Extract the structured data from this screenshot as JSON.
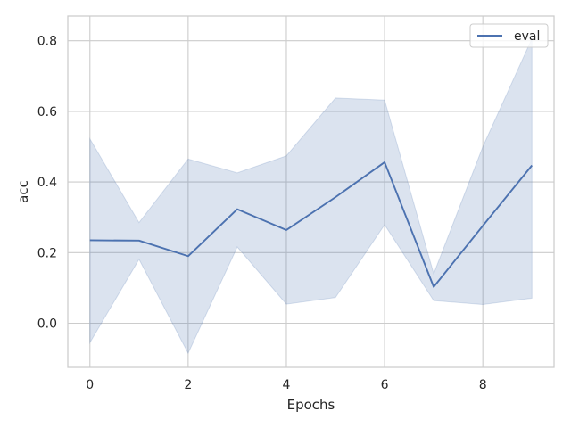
{
  "chart_data": {
    "type": "line",
    "xlabel": "Epochs",
    "ylabel": "acc",
    "xlim": [
      -0.45,
      9.45
    ],
    "ylim": [
      -0.125,
      0.87
    ],
    "xticks": [
      0,
      2,
      4,
      6,
      8
    ],
    "xtick_labels": [
      "0",
      "2",
      "4",
      "6",
      "8"
    ],
    "yticks": [
      0.0,
      0.2,
      0.4,
      0.6,
      0.8
    ],
    "ytick_labels": [
      "0.0",
      "0.2",
      "0.4",
      "0.6",
      "0.8"
    ],
    "grid": true,
    "legend_position": "top-right",
    "series": [
      {
        "name": "eval",
        "color": "#4c72b0",
        "x": [
          0,
          1,
          2,
          3,
          4,
          5,
          6,
          7,
          8,
          9
        ],
        "y": [
          0.235,
          0.234,
          0.19,
          0.323,
          0.264,
          0.357,
          0.456,
          0.103,
          0.276,
          0.447
        ],
        "ci_low": [
          -0.055,
          0.181,
          -0.085,
          0.216,
          0.054,
          0.073,
          0.279,
          0.064,
          0.053,
          0.071
        ],
        "ci_high": [
          0.522,
          0.285,
          0.465,
          0.426,
          0.474,
          0.638,
          0.632,
          0.14,
          0.5,
          0.806
        ]
      }
    ]
  }
}
